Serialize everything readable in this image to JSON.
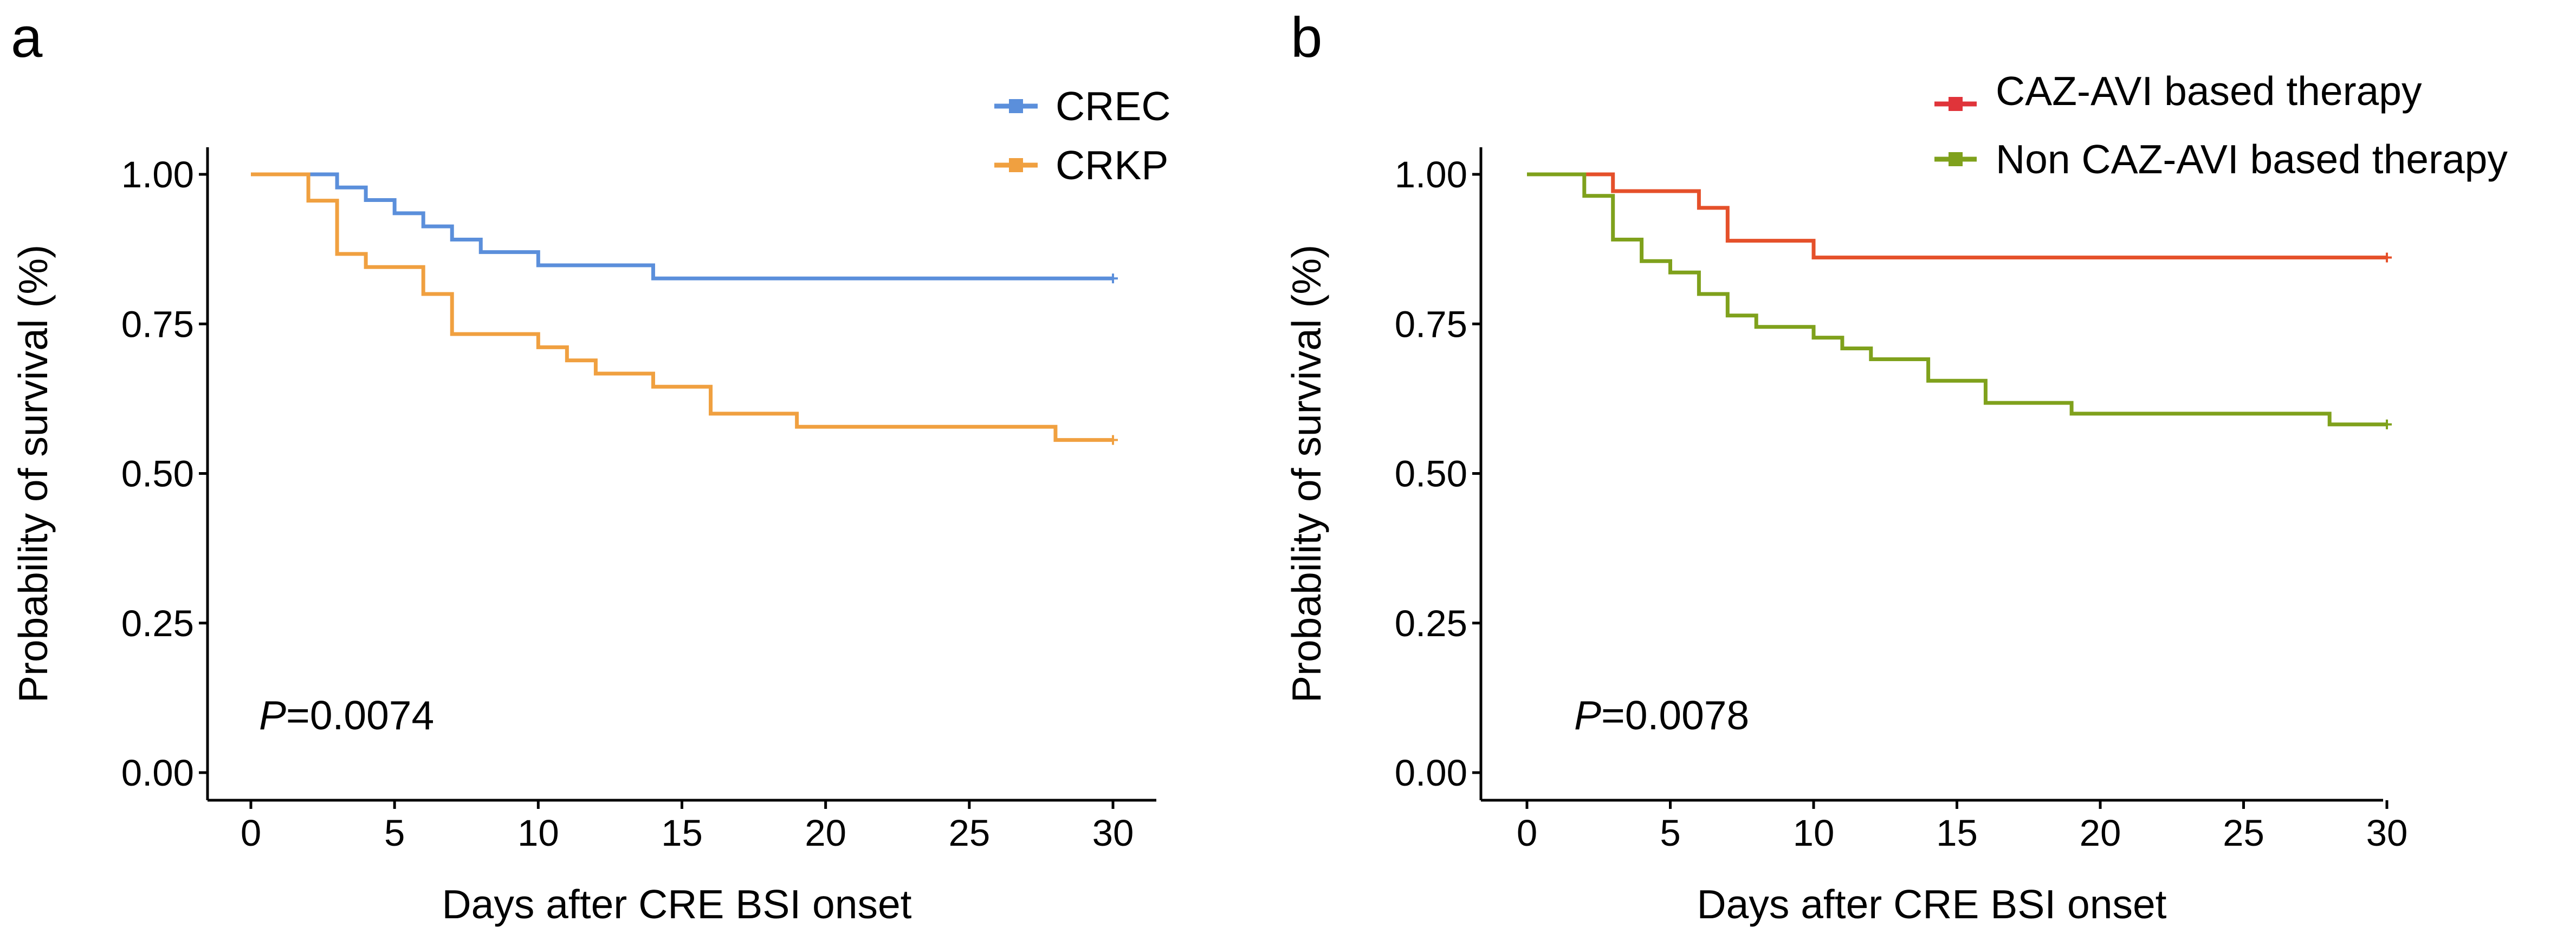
{
  "chart_data": [
    {
      "type": "line",
      "panel_label": "a",
      "xlabel": "Days after CRE BSI onset",
      "ylabel": "Probability of survival (%)",
      "xlim": [
        0,
        30
      ],
      "ylim": [
        0,
        1
      ],
      "xticks": [
        0,
        5,
        10,
        15,
        20,
        25,
        30
      ],
      "xtick_labels": [
        "0",
        "5",
        "10",
        "15",
        "20",
        "25",
        "30"
      ],
      "yticks": [
        0,
        0.25,
        0.5,
        0.75,
        1.0
      ],
      "ytick_labels": [
        "0.00",
        "0.25",
        "0.50",
        "0.75",
        "1.00"
      ],
      "p_value": {
        "prefix": "P",
        "text": "=0.0074"
      },
      "legend_position": "top-right",
      "series": [
        {
          "name": "CREC",
          "color": "#5b8fdb",
          "steps": [
            [
              0,
              1.0
            ],
            [
              3,
              0.978
            ],
            [
              4,
              0.957
            ],
            [
              5,
              0.935
            ],
            [
              6,
              0.913
            ],
            [
              7,
              0.891
            ],
            [
              8,
              0.87
            ],
            [
              10,
              0.848
            ],
            [
              14,
              0.826
            ],
            [
              30,
              0.826
            ]
          ]
        },
        {
          "name": "CRKP",
          "color": "#f0a040",
          "steps": [
            [
              0,
              1.0
            ],
            [
              2,
              0.956
            ],
            [
              3,
              0.867
            ],
            [
              4,
              0.845
            ],
            [
              6,
              0.8
            ],
            [
              7,
              0.733
            ],
            [
              10,
              0.711
            ],
            [
              11,
              0.689
            ],
            [
              12,
              0.667
            ],
            [
              14,
              0.645
            ],
            [
              16,
              0.6
            ],
            [
              19,
              0.578
            ],
            [
              28,
              0.556
            ],
            [
              30,
              0.556
            ]
          ]
        }
      ]
    },
    {
      "type": "line",
      "panel_label": "b",
      "xlabel": "Days after CRE BSI onset",
      "ylabel": "Probability of survival (%)",
      "xlim": [
        0,
        30
      ],
      "ylim": [
        0,
        1
      ],
      "xticks": [
        0,
        5,
        10,
        15,
        20,
        25,
        30
      ],
      "xtick_labels": [
        "0",
        "5",
        "10",
        "15",
        "20",
        "25",
        "30"
      ],
      "yticks": [
        0,
        0.25,
        0.5,
        0.75,
        1.0
      ],
      "ytick_labels": [
        "0.00",
        "0.25",
        "0.50",
        "0.75",
        "1.00"
      ],
      "p_value": {
        "prefix": "P",
        "text": "=0.0078"
      },
      "legend_position": "top-right",
      "series": [
        {
          "name": "CAZ-AVI based therapy",
          "color": "#e5502a",
          "legend_color": "#e0343a",
          "steps": [
            [
              0,
              1.0
            ],
            [
              3,
              0.972
            ],
            [
              6,
              0.944
            ],
            [
              7,
              0.889
            ],
            [
              10,
              0.861
            ],
            [
              30,
              0.861
            ]
          ]
        },
        {
          "name": "Non CAZ-AVI based therapy",
          "color": "#7fa11c",
          "steps": [
            [
              0,
              1.0
            ],
            [
              2,
              0.964
            ],
            [
              3,
              0.891
            ],
            [
              4,
              0.855
            ],
            [
              5,
              0.836
            ],
            [
              6,
              0.8
            ],
            [
              7,
              0.764
            ],
            [
              8,
              0.745
            ],
            [
              10,
              0.727
            ],
            [
              11,
              0.709
            ],
            [
              12,
              0.691
            ],
            [
              14,
              0.655
            ],
            [
              16,
              0.618
            ],
            [
              19,
              0.6
            ],
            [
              28,
              0.582
            ],
            [
              30,
              0.582
            ]
          ]
        }
      ]
    }
  ]
}
